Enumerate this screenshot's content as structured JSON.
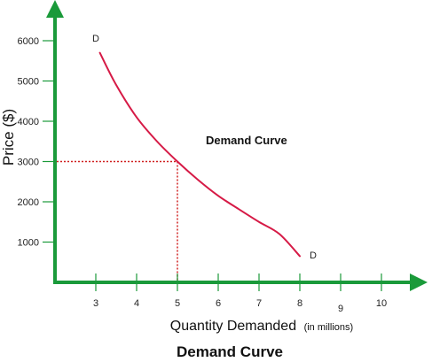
{
  "chart_data": {
    "type": "line",
    "title": "Demand Curve",
    "annotation": "Demand Curve",
    "xlabel": "Quantity Demanded",
    "xlabel_unit": "(in millions)",
    "ylabel": "Price ($)",
    "x_ticks": [
      "3",
      "4",
      "5",
      "6",
      "7",
      "8",
      "9",
      "10"
    ],
    "y_ticks": [
      "1000",
      "2000",
      "3000",
      "4000",
      "5000",
      "6000"
    ],
    "xlim": [
      2,
      11
    ],
    "ylim": [
      0,
      6500
    ],
    "grid": false,
    "series": [
      {
        "start_label": "D",
        "end_label": "D",
        "x": [
          3.1,
          3.5,
          4.0,
          4.5,
          5.0,
          5.5,
          6.0,
          6.5,
          7.0,
          7.5,
          8.0
        ],
        "y": [
          5700,
          4900,
          4100,
          3500,
          3000,
          2550,
          2150,
          1820,
          1500,
          1200,
          650
        ]
      }
    ],
    "reference_point": {
      "x": 5,
      "y": 3000
    },
    "colors": {
      "axis": "#1a9a3a",
      "curve": "#d61a46",
      "guide": "#d02020"
    }
  }
}
